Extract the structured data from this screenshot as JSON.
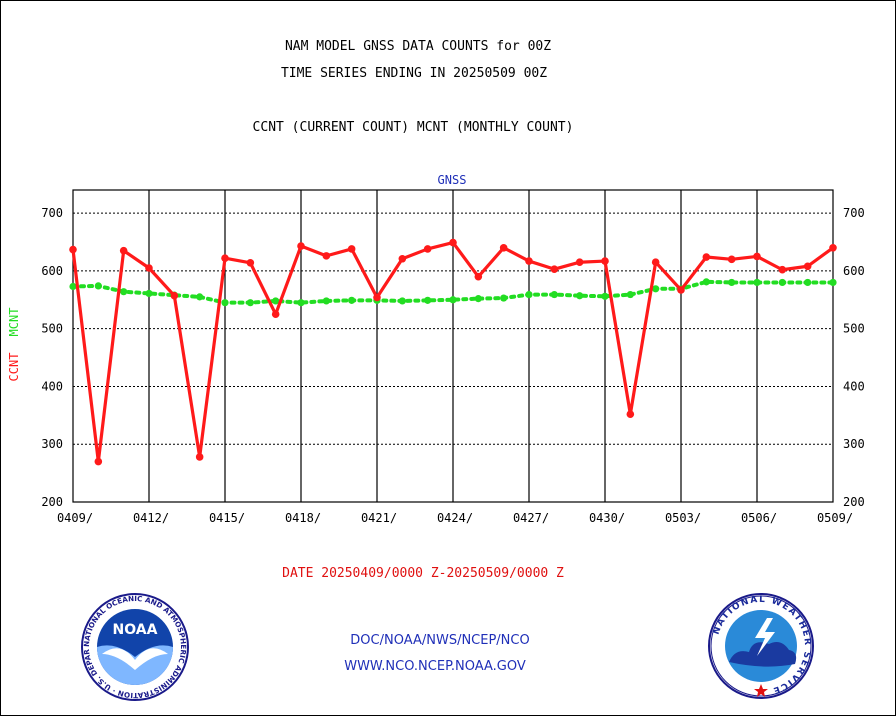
{
  "header": {
    "title_line1": "NAM MODEL GNSS DATA COUNTS for 00Z",
    "title_line2": "TIME SERIES ENDING IN 20250509 00Z",
    "subtitle": "CCNT (CURRENT COUNT) MCNT (MONTHLY COUNT)"
  },
  "footer": {
    "date_range": "DATE 20250409/0000 Z-20250509/0000 Z",
    "org_path": "DOC/NOAA/NWS/NCEP/NCO",
    "website": "WWW.NCO.NCEP.NOAA.GOV"
  },
  "logos": {
    "noaa_text": "NOAA",
    "noaa_ring": "NATIONAL OCEANIC AND ATMOSPHERIC ADMINISTRATION · U.S. DEPARTMENT OF COMMERCE ·",
    "nws_ring": "NATIONAL WEATHER SERVICE"
  },
  "colors": {
    "ccnt": "#ff1a1a",
    "mcnt": "#22dd22",
    "panel_title": "#1f2fb8",
    "footer_red": "#e01010",
    "footer_blue": "#1f2fb8"
  },
  "chart_data": {
    "type": "line",
    "title": "GNSS",
    "ylabel_left_parts": [
      "CCNT",
      "MCNT"
    ],
    "ylim": [
      200,
      740
    ],
    "yticks": [
      200,
      300,
      400,
      500,
      600,
      700
    ],
    "xlim_days": [
      0,
      30
    ],
    "xticks": [
      "0409/",
      "0412/",
      "0415/",
      "0418/",
      "0421/",
      "0424/",
      "0427/",
      "0430/",
      "0503/",
      "0506/",
      "0509/"
    ],
    "grid": "dashed",
    "series": [
      {
        "name": "CCNT",
        "style": "solid",
        "values": [
          637,
          270,
          635,
          605,
          557,
          278,
          622,
          614,
          525,
          643,
          626,
          638,
          554,
          621,
          638,
          649,
          590,
          640,
          617,
          603,
          615,
          617,
          352,
          615,
          567,
          624,
          620,
          625,
          602,
          608,
          640
        ]
      },
      {
        "name": "MCNT",
        "style": "dotted",
        "values": [
          573,
          574,
          564,
          561,
          558,
          555,
          545,
          545,
          548,
          545,
          548,
          549,
          549,
          548,
          549,
          550,
          552,
          553,
          559,
          559,
          557,
          556,
          559,
          569,
          569,
          581,
          580,
          580,
          580,
          580,
          580
        ]
      }
    ]
  }
}
